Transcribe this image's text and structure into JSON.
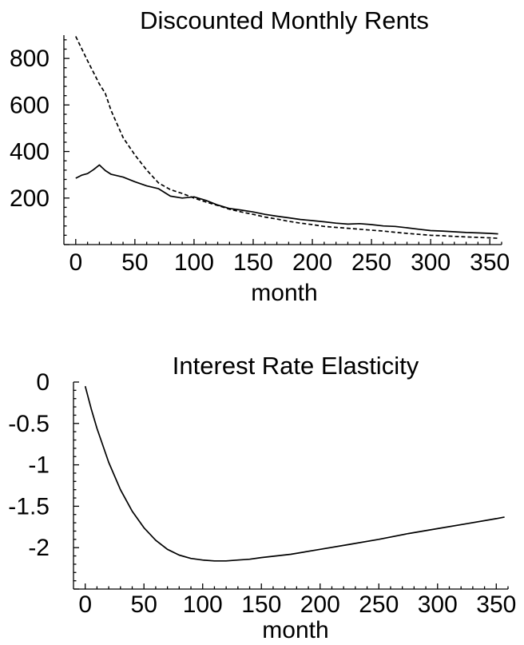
{
  "chart_data": [
    {
      "type": "line",
      "title": "Discounted Monthly Rents",
      "xlabel": "month",
      "ylabel": "",
      "xlim": [
        -10,
        360
      ],
      "ylim": [
        0,
        900
      ],
      "x_ticks": [
        0,
        50,
        100,
        150,
        200,
        250,
        300,
        350
      ],
      "y_ticks": [
        200,
        400,
        600,
        800
      ],
      "grid": false,
      "series": [
        {
          "style": "solid",
          "color": "#000000",
          "points": [
            [
              0,
              285
            ],
            [
              5,
              298
            ],
            [
              10,
              305
            ],
            [
              15,
              322
            ],
            [
              20,
              342
            ],
            [
              25,
              318
            ],
            [
              30,
              302
            ],
            [
              40,
              290
            ],
            [
              50,
              270
            ],
            [
              60,
              252
            ],
            [
              70,
              240
            ],
            [
              80,
              208
            ],
            [
              90,
              200
            ],
            [
              100,
              205
            ],
            [
              110,
              190
            ],
            [
              120,
              170
            ],
            [
              130,
              155
            ],
            [
              140,
              148
            ],
            [
              150,
              140
            ],
            [
              160,
              130
            ],
            [
              170,
              122
            ],
            [
              180,
              115
            ],
            [
              190,
              108
            ],
            [
              200,
              103
            ],
            [
              210,
              98
            ],
            [
              220,
              92
            ],
            [
              230,
              88
            ],
            [
              240,
              90
            ],
            [
              250,
              86
            ],
            [
              260,
              80
            ],
            [
              270,
              78
            ],
            [
              280,
              72
            ],
            [
              290,
              66
            ],
            [
              300,
              60
            ],
            [
              310,
              58
            ],
            [
              320,
              55
            ],
            [
              330,
              52
            ],
            [
              340,
              50
            ],
            [
              350,
              48
            ],
            [
              357,
              46
            ]
          ]
        },
        {
          "style": "dashed",
          "color": "#000000",
          "points": [
            [
              0,
              895
            ],
            [
              10,
              790
            ],
            [
              20,
              690
            ],
            [
              25,
              650
            ],
            [
              30,
              575
            ],
            [
              40,
              460
            ],
            [
              50,
              385
            ],
            [
              60,
              320
            ],
            [
              70,
              265
            ],
            [
              80,
              236
            ],
            [
              90,
              220
            ],
            [
              100,
              200
            ],
            [
              110,
              183
            ],
            [
              120,
              168
            ],
            [
              130,
              152
            ],
            [
              140,
              140
            ],
            [
              150,
              130
            ],
            [
              160,
              118
            ],
            [
              170,
              110
            ],
            [
              180,
              100
            ],
            [
              190,
              92
            ],
            [
              200,
              86
            ],
            [
              210,
              78
            ],
            [
              220,
              74
            ],
            [
              230,
              70
            ],
            [
              240,
              66
            ],
            [
              250,
              62
            ],
            [
              260,
              58
            ],
            [
              270,
              53
            ],
            [
              280,
              48
            ],
            [
              290,
              44
            ],
            [
              300,
              40
            ],
            [
              310,
              38
            ],
            [
              320,
              35
            ],
            [
              330,
              33
            ],
            [
              340,
              31
            ],
            [
              350,
              29
            ],
            [
              357,
              27
            ]
          ]
        }
      ]
    },
    {
      "type": "line",
      "title": "Interest Rate Elasticity",
      "xlabel": "month",
      "ylabel": "",
      "xlim": [
        -10,
        360
      ],
      "ylim": [
        -2.5,
        0
      ],
      "x_ticks": [
        0,
        50,
        100,
        150,
        200,
        250,
        300,
        350
      ],
      "y_ticks": [
        0,
        -0.5,
        -1,
        -1.5,
        -2
      ],
      "y_tick_labels": [
        "0",
        "-0.5",
        "-1",
        "-1.5",
        "-2"
      ],
      "grid": false,
      "series": [
        {
          "style": "solid",
          "color": "#000000",
          "points": [
            [
              0,
              -0.05
            ],
            [
              5,
              -0.32
            ],
            [
              10,
              -0.56
            ],
            [
              20,
              -0.97
            ],
            [
              30,
              -1.3
            ],
            [
              40,
              -1.56
            ],
            [
              50,
              -1.76
            ],
            [
              60,
              -1.91
            ],
            [
              70,
              -2.02
            ],
            [
              80,
              -2.09
            ],
            [
              90,
              -2.13
            ],
            [
              100,
              -2.15
            ],
            [
              110,
              -2.16
            ],
            [
              120,
              -2.16
            ],
            [
              130,
              -2.15
            ],
            [
              140,
              -2.14
            ],
            [
              150,
              -2.12
            ],
            [
              175,
              -2.08
            ],
            [
              200,
              -2.02
            ],
            [
              225,
              -1.96
            ],
            [
              250,
              -1.9
            ],
            [
              275,
              -1.83
            ],
            [
              300,
              -1.77
            ],
            [
              325,
              -1.71
            ],
            [
              350,
              -1.65
            ],
            [
              357,
              -1.63
            ]
          ]
        }
      ]
    }
  ]
}
